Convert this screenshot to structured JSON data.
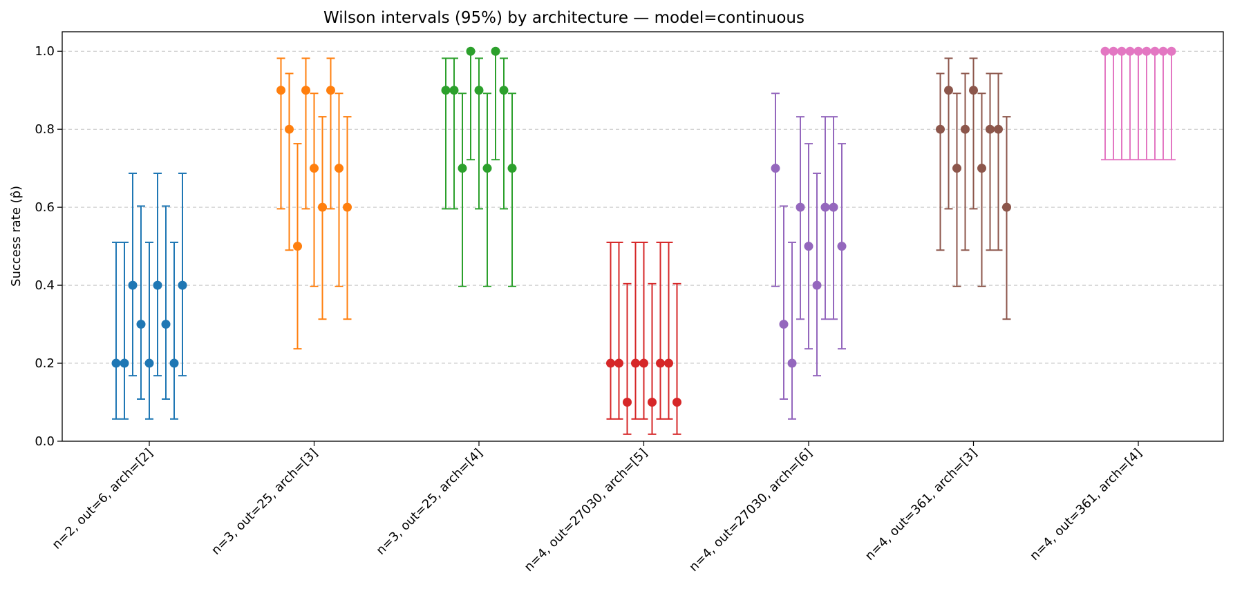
{
  "chart_data": {
    "type": "errorbar",
    "title": "Wilson intervals (95%) by architecture — model=continuous",
    "xlabel": "",
    "ylabel": "Success rate (p̂)",
    "ylim": [
      0,
      1.05
    ],
    "yticks": [
      0.0,
      0.2,
      0.4,
      0.6,
      0.8,
      1.0
    ],
    "ytick_labels": [
      "0.0",
      "0.2",
      "0.4",
      "0.6",
      "0.8",
      "1.0"
    ],
    "grid": "horizontal dashed",
    "groups": [
      {
        "label": "n=2, out=6, arch=[2]",
        "color": "#1f77b4",
        "points": [
          {
            "p": 0.2,
            "lo": 0.057,
            "hi": 0.51
          },
          {
            "p": 0.2,
            "lo": 0.057,
            "hi": 0.51
          },
          {
            "p": 0.4,
            "lo": 0.168,
            "hi": 0.687
          },
          {
            "p": 0.3,
            "lo": 0.108,
            "hi": 0.603
          },
          {
            "p": 0.2,
            "lo": 0.057,
            "hi": 0.51
          },
          {
            "p": 0.4,
            "lo": 0.168,
            "hi": 0.687
          },
          {
            "p": 0.3,
            "lo": 0.108,
            "hi": 0.603
          },
          {
            "p": 0.2,
            "lo": 0.057,
            "hi": 0.51
          },
          {
            "p": 0.4,
            "lo": 0.168,
            "hi": 0.687
          }
        ]
      },
      {
        "label": "n=3, out=25, arch=[3]",
        "color": "#ff7f0e",
        "points": [
          {
            "p": 0.9,
            "lo": 0.596,
            "hi": 0.982
          },
          {
            "p": 0.8,
            "lo": 0.49,
            "hi": 0.943
          },
          {
            "p": 0.5,
            "lo": 0.237,
            "hi": 0.763
          },
          {
            "p": 0.9,
            "lo": 0.596,
            "hi": 0.982
          },
          {
            "p": 0.7,
            "lo": 0.397,
            "hi": 0.892
          },
          {
            "p": 0.6,
            "lo": 0.313,
            "hi": 0.832
          },
          {
            "p": 0.9,
            "lo": 0.596,
            "hi": 0.982
          },
          {
            "p": 0.7,
            "lo": 0.397,
            "hi": 0.892
          },
          {
            "p": 0.6,
            "lo": 0.313,
            "hi": 0.832
          }
        ]
      },
      {
        "label": "n=3, out=25, arch=[4]",
        "color": "#2ca02c",
        "points": [
          {
            "p": 0.9,
            "lo": 0.596,
            "hi": 0.982
          },
          {
            "p": 0.9,
            "lo": 0.596,
            "hi": 0.982
          },
          {
            "p": 0.7,
            "lo": 0.397,
            "hi": 0.892
          },
          {
            "p": 1.0,
            "lo": 0.722,
            "hi": 1.0
          },
          {
            "p": 0.9,
            "lo": 0.596,
            "hi": 0.982
          },
          {
            "p": 0.7,
            "lo": 0.397,
            "hi": 0.892
          },
          {
            "p": 1.0,
            "lo": 0.722,
            "hi": 1.0
          },
          {
            "p": 0.9,
            "lo": 0.596,
            "hi": 0.982
          },
          {
            "p": 0.7,
            "lo": 0.397,
            "hi": 0.892
          }
        ]
      },
      {
        "label": "n=4, out=27030, arch=[5]",
        "color": "#d62728",
        "points": [
          {
            "p": 0.2,
            "lo": 0.057,
            "hi": 0.51
          },
          {
            "p": 0.2,
            "lo": 0.057,
            "hi": 0.51
          },
          {
            "p": 0.1,
            "lo": 0.018,
            "hi": 0.404
          },
          {
            "p": 0.2,
            "lo": 0.057,
            "hi": 0.51
          },
          {
            "p": 0.2,
            "lo": 0.057,
            "hi": 0.51
          },
          {
            "p": 0.1,
            "lo": 0.018,
            "hi": 0.404
          },
          {
            "p": 0.2,
            "lo": 0.057,
            "hi": 0.51
          },
          {
            "p": 0.2,
            "lo": 0.057,
            "hi": 0.51
          },
          {
            "p": 0.1,
            "lo": 0.018,
            "hi": 0.404
          }
        ]
      },
      {
        "label": "n=4, out=27030, arch=[6]",
        "color": "#9467bd",
        "points": [
          {
            "p": 0.7,
            "lo": 0.397,
            "hi": 0.892
          },
          {
            "p": 0.3,
            "lo": 0.108,
            "hi": 0.603
          },
          {
            "p": 0.2,
            "lo": 0.057,
            "hi": 0.51
          },
          {
            "p": 0.6,
            "lo": 0.313,
            "hi": 0.832
          },
          {
            "p": 0.5,
            "lo": 0.237,
            "hi": 0.763
          },
          {
            "p": 0.4,
            "lo": 0.168,
            "hi": 0.687
          },
          {
            "p": 0.6,
            "lo": 0.313,
            "hi": 0.832
          },
          {
            "p": 0.6,
            "lo": 0.313,
            "hi": 0.832
          },
          {
            "p": 0.5,
            "lo": 0.237,
            "hi": 0.763
          }
        ]
      },
      {
        "label": "n=4, out=361, arch=[3]",
        "color": "#8c564b",
        "points": [
          {
            "p": 0.8,
            "lo": 0.49,
            "hi": 0.943
          },
          {
            "p": 0.9,
            "lo": 0.596,
            "hi": 0.982
          },
          {
            "p": 0.7,
            "lo": 0.397,
            "hi": 0.892
          },
          {
            "p": 0.8,
            "lo": 0.49,
            "hi": 0.943
          },
          {
            "p": 0.9,
            "lo": 0.596,
            "hi": 0.982
          },
          {
            "p": 0.7,
            "lo": 0.397,
            "hi": 0.892
          },
          {
            "p": 0.8,
            "lo": 0.49,
            "hi": 0.943
          },
          {
            "p": 0.8,
            "lo": 0.49,
            "hi": 0.943
          },
          {
            "p": 0.6,
            "lo": 0.313,
            "hi": 0.832
          }
        ]
      },
      {
        "label": "n=4, out=361, arch=[4]",
        "color": "#e377c2",
        "points": [
          {
            "p": 1.0,
            "lo": 0.722,
            "hi": 1.0
          },
          {
            "p": 1.0,
            "lo": 0.722,
            "hi": 1.0
          },
          {
            "p": 1.0,
            "lo": 0.722,
            "hi": 1.0
          },
          {
            "p": 1.0,
            "lo": 0.722,
            "hi": 1.0
          },
          {
            "p": 1.0,
            "lo": 0.722,
            "hi": 1.0
          },
          {
            "p": 1.0,
            "lo": 0.722,
            "hi": 1.0
          },
          {
            "p": 1.0,
            "lo": 0.722,
            "hi": 1.0
          },
          {
            "p": 1.0,
            "lo": 0.722,
            "hi": 1.0
          },
          {
            "p": 1.0,
            "lo": 0.722,
            "hi": 1.0
          }
        ]
      }
    ]
  }
}
